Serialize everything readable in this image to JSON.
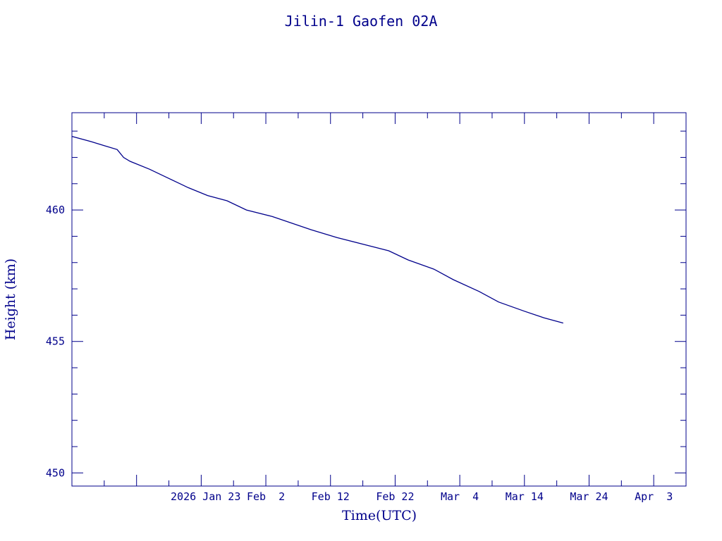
{
  "chart_data": {
    "type": "line",
    "title": "Jilin-1 Gaofen 02A",
    "xlabel": "Time(UTC)",
    "ylabel": "Height (km)",
    "xlim": [
      "2026-01-03",
      "2026-04-08"
    ],
    "ylim": [
      449.5,
      463.7
    ],
    "x_ticks": [
      {
        "date": "2026-01-23",
        "label": "2026 Jan 23"
      },
      {
        "date": "2026-02-02",
        "label": "Feb  2"
      },
      {
        "date": "2026-02-12",
        "label": "Feb 12"
      },
      {
        "date": "2026-02-22",
        "label": "Feb 22"
      },
      {
        "date": "2026-03-04",
        "label": "Mar  4"
      },
      {
        "date": "2026-03-14",
        "label": "Mar 14"
      },
      {
        "date": "2026-03-24",
        "label": "Mar 24"
      },
      {
        "date": "2026-04-03",
        "label": "Apr  3"
      }
    ],
    "y_ticks": [
      450,
      455,
      460
    ],
    "grid": false,
    "colors": {
      "line": "#00008b",
      "text": "#00008b",
      "frame": "#00008b"
    },
    "series": [
      {
        "x": [
          "2026-01-03",
          "2026-01-06",
          "2026-01-08",
          "2026-01-10",
          "2026-01-11",
          "2026-01-12",
          "2026-01-15",
          "2026-01-18",
          "2026-01-21",
          "2026-01-24",
          "2026-01-27",
          "2026-01-30",
          "2026-02-03",
          "2026-02-06",
          "2026-02-09",
          "2026-02-13",
          "2026-02-17",
          "2026-02-21",
          "2026-02-24",
          "2026-02-28",
          "2026-03-03",
          "2026-03-07",
          "2026-03-10",
          "2026-03-14",
          "2026-03-17",
          "2026-03-20"
        ],
        "values": [
          462.8,
          462.6,
          462.45,
          462.3,
          462.0,
          461.85,
          461.55,
          461.2,
          460.85,
          460.55,
          460.35,
          460.0,
          459.75,
          459.5,
          459.25,
          458.95,
          458.7,
          458.45,
          458.1,
          457.75,
          457.35,
          456.9,
          456.5,
          456.15,
          455.9,
          455.7
        ]
      }
    ]
  }
}
